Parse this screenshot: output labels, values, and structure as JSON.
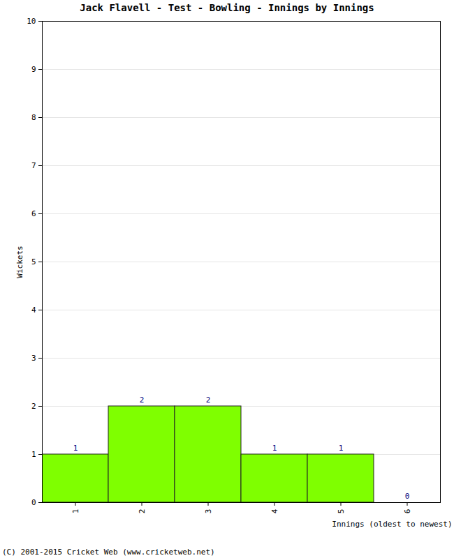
{
  "chart_data": {
    "type": "bar",
    "title": "Jack Flavell - Test - Bowling - Innings by Innings",
    "x_label": "Innings (oldest to newest)",
    "y_label": "Wickets",
    "categories": [
      "1",
      "2",
      "3",
      "4",
      "5",
      "6"
    ],
    "values": [
      1,
      2,
      2,
      1,
      1,
      0
    ],
    "color": "#7fff00",
    "ylim": [
      0,
      10
    ],
    "yticks": [
      0,
      1,
      2,
      3,
      4,
      5,
      6,
      7,
      8,
      9,
      10
    ],
    "grid": true,
    "data_labels": true,
    "caption": "(C) 2001-2015 Cricket Web (www.cricketweb.net)"
  }
}
